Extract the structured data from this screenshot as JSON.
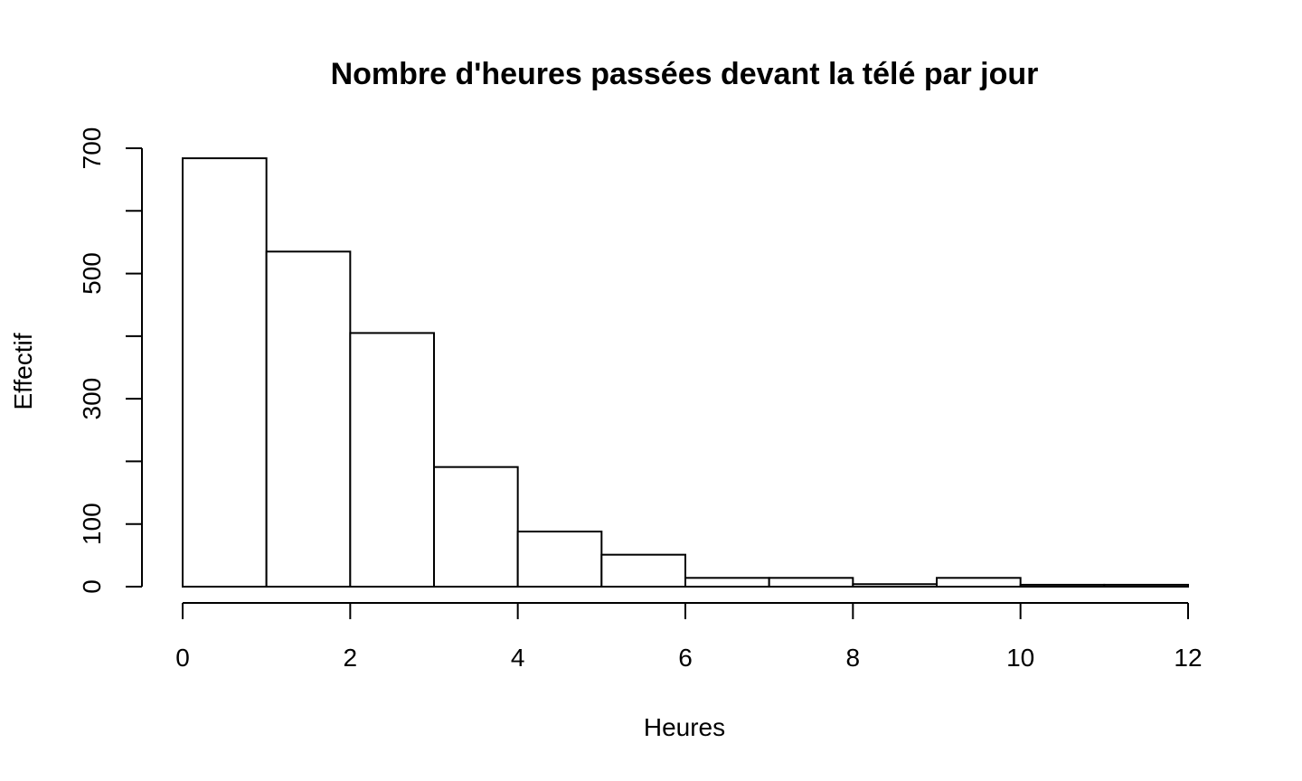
{
  "chart_data": {
    "type": "bar",
    "title": "Nombre d'heures passées devant la télé par jour",
    "xlabel": "Heures",
    "ylabel": "Effectif",
    "bins": [
      {
        "from": 0,
        "to": 1,
        "value": 684
      },
      {
        "from": 1,
        "to": 2,
        "value": 535
      },
      {
        "from": 2,
        "to": 3,
        "value": 405
      },
      {
        "from": 3,
        "to": 4,
        "value": 191
      },
      {
        "from": 4,
        "to": 5,
        "value": 88
      },
      {
        "from": 5,
        "to": 6,
        "value": 51
      },
      {
        "from": 6,
        "to": 7,
        "value": 14
      },
      {
        "from": 7,
        "to": 8,
        "value": 14
      },
      {
        "from": 8,
        "to": 9,
        "value": 4
      },
      {
        "from": 9,
        "to": 10,
        "value": 14
      },
      {
        "from": 10,
        "to": 11,
        "value": 3
      },
      {
        "from": 11,
        "to": 12,
        "value": 3
      }
    ],
    "xlim": [
      0,
      12
    ],
    "ylim": [
      0,
      700
    ],
    "x_ticks": [
      "0",
      "2",
      "4",
      "6",
      "8",
      "10",
      "12"
    ],
    "y_ticks": [
      "0",
      "100",
      "300",
      "500",
      "700"
    ],
    "grid": false,
    "legend": "none"
  }
}
